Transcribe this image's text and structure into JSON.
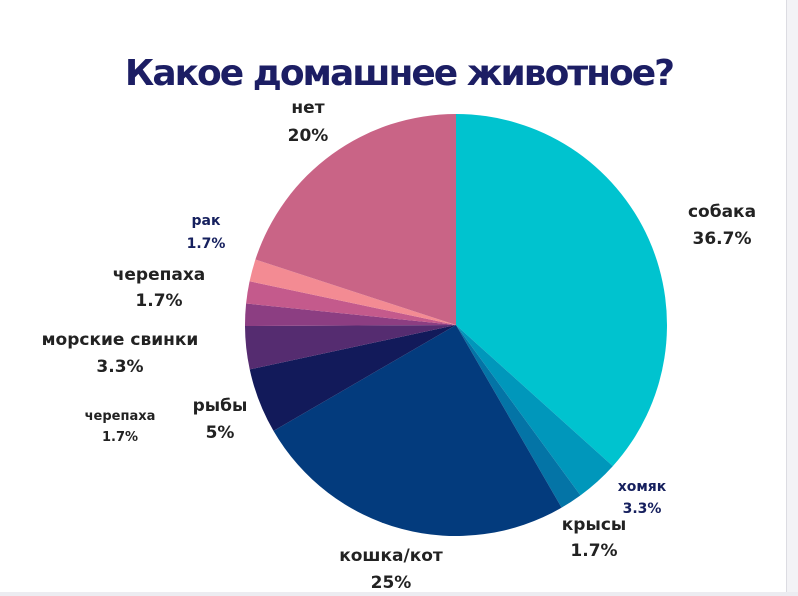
{
  "title": "Какое домашнее животное?",
  "chart_data": {
    "type": "pie",
    "title": "Какое домашнее животное?",
    "start_angle_deg": 0,
    "direction": "clockwise",
    "slices": [
      {
        "label": "собака",
        "value_label": "36.7%",
        "value": 36.7,
        "color": "#00c3cf"
      },
      {
        "label": "хомяк",
        "value_label": "3.3%",
        "value": 3.3,
        "color": "#0097bb"
      },
      {
        "label": "крысы",
        "value_label": "1.7%",
        "value": 1.7,
        "color": "#0474a6"
      },
      {
        "label": "кошка/кот",
        "value_label": "25%",
        "value": 25,
        "color": "#033b7d"
      },
      {
        "label": "рыбы",
        "value_label": "5%",
        "value": 5,
        "color": "#121a5a"
      },
      {
        "label": "морские свинки",
        "value_label": "3.3%",
        "value": 3.3,
        "color": "#552c70"
      },
      {
        "label": "черепаха",
        "value_label": "1.7%",
        "value": 1.7,
        "color": "#8c3e82"
      },
      {
        "label": "черепаха",
        "value_label": "1.7%",
        "value": 1.7,
        "color": "#c45a8c"
      },
      {
        "label": "рак",
        "value_label": "1.7%",
        "value": 1.7,
        "color": "#f38b93"
      },
      {
        "label": "нет",
        "value_label": "20%",
        "value": 20,
        "color": "#c96486"
      }
    ]
  }
}
